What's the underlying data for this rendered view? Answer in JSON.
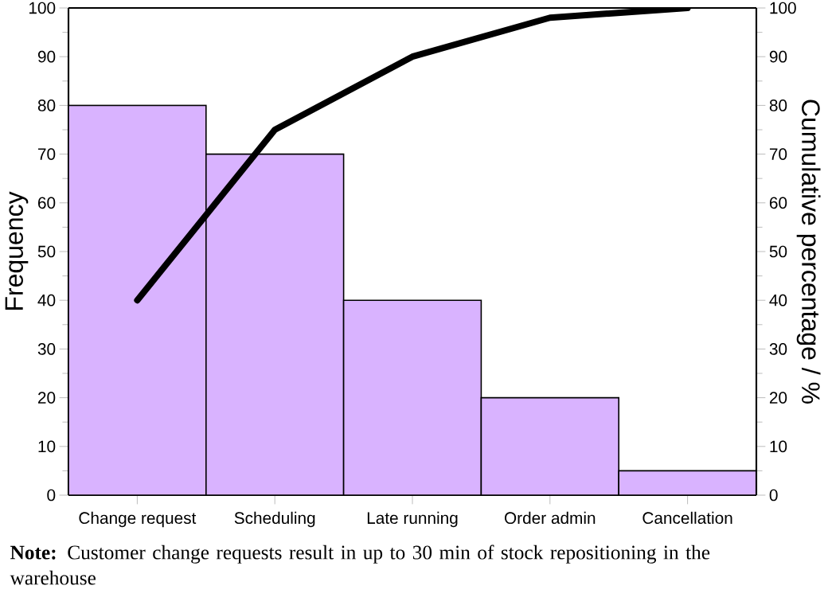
{
  "chart_data": {
    "type": "bar",
    "xlabel": null,
    "ylabel": "Frequency",
    "y2label": "Cumulative percentage / %",
    "categories": [
      "Change request",
      "Scheduling",
      "Late running",
      "Order admin",
      "Cancellation"
    ],
    "series": [
      {
        "color": "#d9b3ff",
        "values": [
          80,
          70,
          40,
          20,
          5
        ]
      },
      {
        "type": "line",
        "axis": "y2",
        "color": "#000000",
        "values": [
          40,
          75,
          90,
          98,
          100
        ]
      }
    ],
    "ylim": [
      0,
      100
    ],
    "yticks": [
      0,
      10,
      20,
      30,
      40,
      50,
      60,
      70,
      80,
      90,
      100
    ],
    "y2lim": [
      0,
      100
    ],
    "y2ticks": [
      0,
      10,
      20,
      30,
      40,
      50,
      60,
      70,
      80,
      90,
      100
    ],
    "grid": false,
    "marker": "none",
    "line_style": "solid",
    "annotations": [
      "**Note:** Customer change requests result in up to 30 min of stock repositioning in the warehouse"
    ]
  }
}
